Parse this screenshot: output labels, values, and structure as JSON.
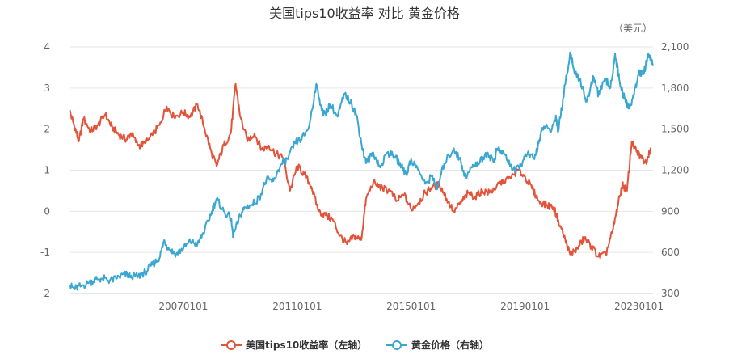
{
  "chart_data": {
    "type": "line",
    "title": "美国tips10收益率 对比 黄金价格",
    "right_unit": "（美元）",
    "x_start": "2003-01-01",
    "x_end": "2023-07-01",
    "x_ticks": [
      {
        "date": "2007-01-01",
        "label": "20070101"
      },
      {
        "date": "2011-01-01",
        "label": "20110101"
      },
      {
        "date": "2015-01-01",
        "label": "20150101"
      },
      {
        "date": "2019-01-01",
        "label": "20190101"
      },
      {
        "date": "2023-01-01",
        "label": "20230101"
      }
    ],
    "y_left": {
      "min": -2,
      "max": 4,
      "ticks": [
        "-2",
        "-1",
        "0",
        "1",
        "2",
        "3",
        "4"
      ]
    },
    "y_right": {
      "min": 300,
      "max": 2100,
      "ticks": [
        "300",
        "600",
        "900",
        "1,200",
        "1,500",
        "1,800",
        "2,100"
      ]
    },
    "grid": true,
    "legend_position": "bottom",
    "series": [
      {
        "name": "美国tips10收益率（左轴）",
        "axis": "left",
        "color": "#e2533a",
        "points": [
          [
            "2003-01-01",
            2.45
          ],
          [
            "2003-03-01",
            2.1
          ],
          [
            "2003-05-01",
            1.7
          ],
          [
            "2003-07-01",
            2.25
          ],
          [
            "2003-10-01",
            1.95
          ],
          [
            "2004-01-01",
            2.1
          ],
          [
            "2004-04-01",
            2.35
          ],
          [
            "2004-07-01",
            2.05
          ],
          [
            "2004-10-01",
            1.85
          ],
          [
            "2005-01-01",
            1.75
          ],
          [
            "2005-03-01",
            1.9
          ],
          [
            "2005-06-01",
            1.6
          ],
          [
            "2005-09-01",
            1.65
          ],
          [
            "2005-12-01",
            1.85
          ],
          [
            "2006-03-01",
            2.1
          ],
          [
            "2006-06-01",
            2.55
          ],
          [
            "2006-09-01",
            2.3
          ],
          [
            "2007-01-01",
            2.4
          ],
          [
            "2007-04-01",
            2.3
          ],
          [
            "2007-07-01",
            2.6
          ],
          [
            "2007-10-01",
            2.0
          ],
          [
            "2008-01-01",
            1.4
          ],
          [
            "2008-03-01",
            1.1
          ],
          [
            "2008-06-01",
            1.6
          ],
          [
            "2008-09-01",
            1.9
          ],
          [
            "2008-11-01",
            3.1
          ],
          [
            "2009-01-01",
            2.3
          ],
          [
            "2009-04-01",
            1.7
          ],
          [
            "2009-07-01",
            1.9
          ],
          [
            "2009-10-01",
            1.5
          ],
          [
            "2010-01-01",
            1.6
          ],
          [
            "2010-04-01",
            1.4
          ],
          [
            "2010-07-01",
            1.3
          ],
          [
            "2010-10-01",
            0.5
          ],
          [
            "2011-01-01",
            1.1
          ],
          [
            "2011-04-01",
            0.9
          ],
          [
            "2011-07-01",
            0.6
          ],
          [
            "2011-10-01",
            0.0
          ],
          [
            "2012-01-01",
            -0.1
          ],
          [
            "2012-04-01",
            -0.2
          ],
          [
            "2012-07-01",
            -0.6
          ],
          [
            "2012-10-01",
            -0.8
          ],
          [
            "2013-01-01",
            -0.6
          ],
          [
            "2013-04-01",
            -0.7
          ],
          [
            "2013-06-01",
            0.3
          ],
          [
            "2013-09-01",
            0.7
          ],
          [
            "2014-01-01",
            0.55
          ],
          [
            "2014-04-01",
            0.5
          ],
          [
            "2014-07-01",
            0.25
          ],
          [
            "2014-10-01",
            0.4
          ],
          [
            "2015-01-01",
            0.05
          ],
          [
            "2015-04-01",
            0.2
          ],
          [
            "2015-07-01",
            0.45
          ],
          [
            "2015-10-01",
            0.6
          ],
          [
            "2016-01-01",
            0.65
          ],
          [
            "2016-04-01",
            0.3
          ],
          [
            "2016-07-01",
            0.0
          ],
          [
            "2016-10-01",
            0.2
          ],
          [
            "2017-01-01",
            0.45
          ],
          [
            "2017-04-01",
            0.35
          ],
          [
            "2017-07-01",
            0.5
          ],
          [
            "2017-10-01",
            0.45
          ],
          [
            "2018-01-01",
            0.6
          ],
          [
            "2018-04-01",
            0.75
          ],
          [
            "2018-07-01",
            0.8
          ],
          [
            "2018-10-01",
            1.0
          ],
          [
            "2019-01-01",
            0.85
          ],
          [
            "2019-04-01",
            0.55
          ],
          [
            "2019-07-01",
            0.25
          ],
          [
            "2019-10-01",
            0.15
          ],
          [
            "2020-01-01",
            0.1
          ],
          [
            "2020-03-01",
            -0.2
          ],
          [
            "2020-06-01",
            -0.7
          ],
          [
            "2020-08-01",
            -1.05
          ],
          [
            "2020-11-01",
            -0.9
          ],
          [
            "2021-02-01",
            -0.65
          ],
          [
            "2021-05-01",
            -0.85
          ],
          [
            "2021-08-01",
            -1.1
          ],
          [
            "2021-11-01",
            -1.05
          ],
          [
            "2022-02-01",
            -0.45
          ],
          [
            "2022-04-01",
            0.1
          ],
          [
            "2022-06-01",
            0.65
          ],
          [
            "2022-08-01",
            0.5
          ],
          [
            "2022-10-01",
            1.7
          ],
          [
            "2022-12-01",
            1.45
          ],
          [
            "2023-02-01",
            1.3
          ],
          [
            "2023-04-01",
            1.2
          ],
          [
            "2023-06-01",
            1.55
          ]
        ]
      },
      {
        "name": "黄金价格（右轴）",
        "axis": "right",
        "color": "#3aa7d0",
        "points": [
          [
            "2003-01-01",
            360
          ],
          [
            "2003-03-01",
            335
          ],
          [
            "2003-06-01",
            355
          ],
          [
            "2003-09-01",
            375
          ],
          [
            "2003-12-01",
            405
          ],
          [
            "2004-03-01",
            410
          ],
          [
            "2004-06-01",
            395
          ],
          [
            "2004-09-01",
            410
          ],
          [
            "2004-12-01",
            440
          ],
          [
            "2005-03-01",
            430
          ],
          [
            "2005-06-01",
            425
          ],
          [
            "2005-09-01",
            460
          ],
          [
            "2005-12-01",
            510
          ],
          [
            "2006-03-01",
            560
          ],
          [
            "2006-05-01",
            690
          ],
          [
            "2006-07-01",
            620
          ],
          [
            "2006-10-01",
            590
          ],
          [
            "2007-01-01",
            630
          ],
          [
            "2007-04-01",
            680
          ],
          [
            "2007-07-01",
            660
          ],
          [
            "2007-10-01",
            760
          ],
          [
            "2008-01-01",
            900
          ],
          [
            "2008-03-01",
            990
          ],
          [
            "2008-06-01",
            900
          ],
          [
            "2008-09-01",
            850
          ],
          [
            "2008-10-01",
            720
          ],
          [
            "2009-01-01",
            870
          ],
          [
            "2009-03-01",
            930
          ],
          [
            "2009-06-01",
            950
          ],
          [
            "2009-09-01",
            1000
          ],
          [
            "2009-12-01",
            1130
          ],
          [
            "2010-03-01",
            1120
          ],
          [
            "2010-06-01",
            1240
          ],
          [
            "2010-09-01",
            1280
          ],
          [
            "2010-12-01",
            1400
          ],
          [
            "2011-03-01",
            1430
          ],
          [
            "2011-06-01",
            1520
          ],
          [
            "2011-09-01",
            1830
          ],
          [
            "2011-12-01",
            1600
          ],
          [
            "2012-03-01",
            1680
          ],
          [
            "2012-06-01",
            1590
          ],
          [
            "2012-09-01",
            1760
          ],
          [
            "2012-12-01",
            1680
          ],
          [
            "2013-02-01",
            1600
          ],
          [
            "2013-04-01",
            1400
          ],
          [
            "2013-06-01",
            1250
          ],
          [
            "2013-09-01",
            1330
          ],
          [
            "2013-12-01",
            1220
          ],
          [
            "2014-03-01",
            1330
          ],
          [
            "2014-06-01",
            1300
          ],
          [
            "2014-09-01",
            1230
          ],
          [
            "2014-11-01",
            1170
          ],
          [
            "2015-01-01",
            1280
          ],
          [
            "2015-04-01",
            1200
          ],
          [
            "2015-07-01",
            1100
          ],
          [
            "2015-10-01",
            1160
          ],
          [
            "2015-12-01",
            1060
          ],
          [
            "2016-03-01",
            1250
          ],
          [
            "2016-07-01",
            1360
          ],
          [
            "2016-10-01",
            1260
          ],
          [
            "2016-12-01",
            1140
          ],
          [
            "2017-03-01",
            1240
          ],
          [
            "2017-06-01",
            1260
          ],
          [
            "2017-09-01",
            1330
          ],
          [
            "2017-12-01",
            1260
          ],
          [
            "2018-01-01",
            1350
          ],
          [
            "2018-04-01",
            1330
          ],
          [
            "2018-07-01",
            1230
          ],
          [
            "2018-09-01",
            1190
          ],
          [
            "2018-12-01",
            1260
          ],
          [
            "2019-02-01",
            1320
          ],
          [
            "2019-05-01",
            1280
          ],
          [
            "2019-07-01",
            1420
          ],
          [
            "2019-09-01",
            1520
          ],
          [
            "2019-12-01",
            1480
          ],
          [
            "2020-02-01",
            1600
          ],
          [
            "2020-03-01",
            1480
          ],
          [
            "2020-05-01",
            1720
          ],
          [
            "2020-08-01",
            2060
          ],
          [
            "2020-10-01",
            1900
          ],
          [
            "2020-12-01",
            1870
          ],
          [
            "2021-03-01",
            1700
          ],
          [
            "2021-06-01",
            1880
          ],
          [
            "2021-08-01",
            1750
          ],
          [
            "2021-11-01",
            1860
          ],
          [
            "2022-01-01",
            1800
          ],
          [
            "2022-03-01",
            2050
          ],
          [
            "2022-05-01",
            1840
          ],
          [
            "2022-07-01",
            1720
          ],
          [
            "2022-09-01",
            1650
          ],
          [
            "2022-11-01",
            1760
          ],
          [
            "2023-01-01",
            1920
          ],
          [
            "2023-03-01",
            1900
          ],
          [
            "2023-05-01",
            2050
          ],
          [
            "2023-07-01",
            1960
          ]
        ]
      }
    ]
  }
}
